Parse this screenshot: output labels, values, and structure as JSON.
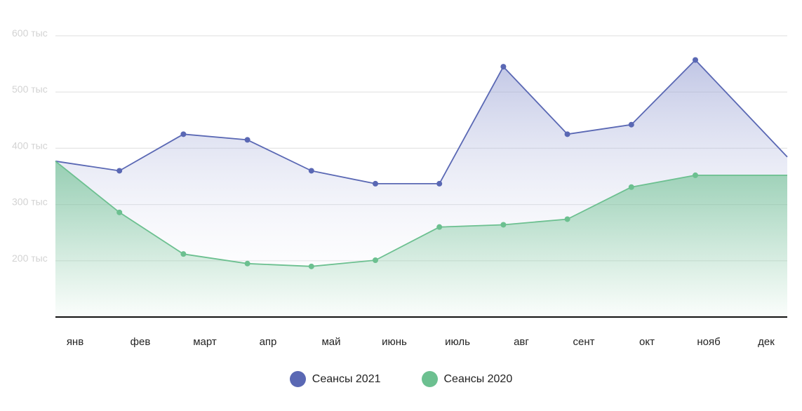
{
  "chart_data": {
    "type": "area",
    "categories": [
      "янв",
      "фев",
      "март",
      "апр",
      "май",
      "июнь",
      "июль",
      "авг",
      "сент",
      "окт",
      "нояб",
      "дек"
    ],
    "ytick_labels": [
      "200 тыс",
      "300 тыс",
      "400 тыс",
      "500 тыс",
      "600 тыс"
    ],
    "yticks": [
      200000,
      300000,
      400000,
      500000,
      600000
    ],
    "ylim": [
      100000,
      600000
    ],
    "grid": true,
    "legend_position": "bottom-center",
    "series": [
      {
        "name": "Сеансы 2021",
        "color": "#5a68b4",
        "values": [
          377000,
          360000,
          425000,
          415000,
          360000,
          337000,
          337000,
          545000,
          425000,
          442000,
          557000,
          437000
        ]
      },
      {
        "name": "Сеансы 2020",
        "color": "#6cc090",
        "values": [
          377000,
          286000,
          212000,
          195000,
          190000,
          201000,
          260000,
          264000,
          274000,
          331000,
          352000,
          352000
        ]
      }
    ]
  }
}
